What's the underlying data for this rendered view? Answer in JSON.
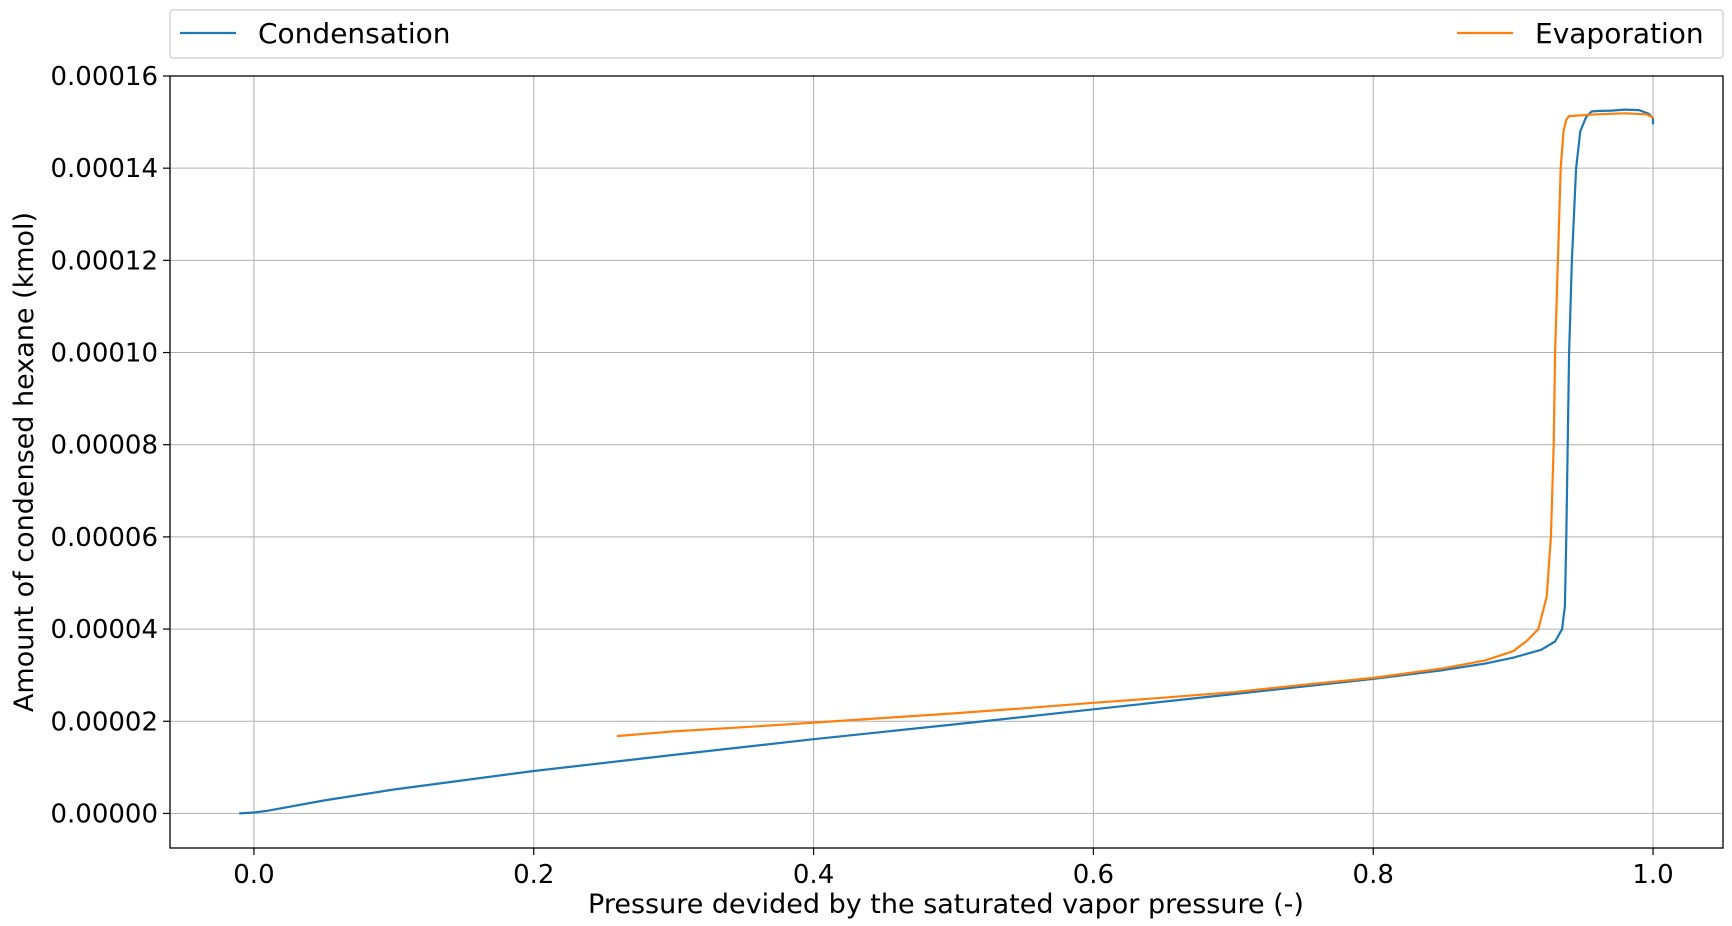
{
  "chart_data": {
    "type": "line",
    "xlabel": "Pressure devided by the saturated vapor pressure (-)",
    "ylabel": "Amount of condensed hexane (kmol)",
    "xlim": [
      -0.06,
      1.05
    ],
    "ylim": [
      -7.5e-06,
      0.00016
    ],
    "x_ticks": [
      0.0,
      0.2,
      0.4,
      0.6,
      0.8,
      1.0
    ],
    "x_tick_labels": [
      "0.0",
      "0.2",
      "0.4",
      "0.6",
      "0.8",
      "1.0"
    ],
    "y_ticks": [
      0,
      2e-05,
      4e-05,
      6e-05,
      8e-05,
      0.0001,
      0.00012,
      0.00014,
      0.00016
    ],
    "y_tick_labels": [
      "0.00000",
      "0.00002",
      "0.00004",
      "0.00006",
      "0.00008",
      "0.00010",
      "0.00012",
      "0.00014",
      "0.00016"
    ],
    "grid": true,
    "legend_placement": "top, above plot",
    "series": [
      {
        "name": "Condensation",
        "color": "#1f77b4",
        "x": [
          -0.01,
          0.0,
          0.01,
          0.05,
          0.1,
          0.2,
          0.3,
          0.4,
          0.5,
          0.6,
          0.7,
          0.8,
          0.85,
          0.88,
          0.9,
          0.92,
          0.93,
          0.935,
          0.937,
          0.938,
          0.939,
          0.94,
          0.942,
          0.945,
          0.948,
          0.952,
          0.956,
          0.96,
          0.97,
          0.98,
          0.99,
          0.997,
          1.0,
          1.0
        ],
        "y": [
          0,
          2e-07,
          6e-07,
          2.8e-06,
          5.2e-06,
          9.2e-06,
          1.27e-05,
          1.61e-05,
          1.93e-05,
          2.26e-05,
          2.59e-05,
          2.92e-05,
          3.11e-05,
          3.25e-05,
          3.38e-05,
          3.55e-05,
          3.73e-05,
          4e-05,
          4.5e-05,
          6e-05,
          8e-05,
          0.0001,
          0.00012,
          0.00014,
          0.000148,
          0.000151,
          0.0001523,
          0.0001524,
          0.0001525,
          0.0001527,
          0.0001526,
          0.0001518,
          0.0001508,
          0.0001497
        ]
      },
      {
        "name": "Evaporation",
        "color": "#ff7f0e",
        "x": [
          0.26,
          0.3,
          0.35,
          0.4,
          0.45,
          0.5,
          0.55,
          0.6,
          0.65,
          0.7,
          0.75,
          0.8,
          0.85,
          0.88,
          0.9,
          0.91,
          0.918,
          0.924,
          0.927,
          0.929,
          0.93,
          0.932,
          0.934,
          0.936,
          0.938,
          0.94,
          0.95,
          0.96,
          0.98,
          0.995,
          1.0
        ],
        "y": [
          1.68e-05,
          1.78e-05,
          1.87e-05,
          1.97e-05,
          2.07e-05,
          2.17e-05,
          2.28e-05,
          2.4e-05,
          2.51e-05,
          2.63e-05,
          2.79e-05,
          2.94e-05,
          3.15e-05,
          3.32e-05,
          3.52e-05,
          3.75e-05,
          4e-05,
          4.7e-05,
          6e-05,
          8e-05,
          0.0001,
          0.00012,
          0.00014,
          0.000148,
          0.0001505,
          0.0001513,
          0.0001515,
          0.0001517,
          0.0001519,
          0.0001517,
          0.000151
        ]
      }
    ]
  }
}
